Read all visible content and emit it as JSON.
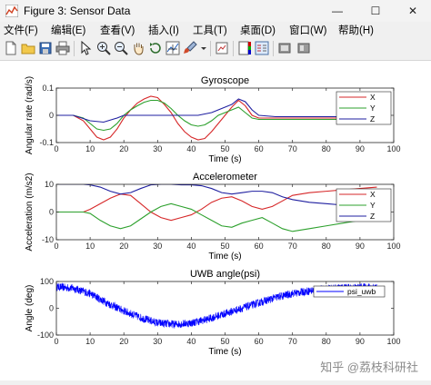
{
  "window": {
    "title": "Figure 3: Sensor Data",
    "controls": {
      "minimize": "—",
      "maximize": "☐",
      "close": "✕"
    }
  },
  "menu": [
    "文件(F)",
    "编辑(E)",
    "查看(V)",
    "插入(I)",
    "工具(T)",
    "桌面(D)",
    "窗口(W)",
    "帮助(H)"
  ],
  "toolbar_icons": [
    "new-file-icon",
    "open-folder-icon",
    "save-icon",
    "print-icon",
    "pointer-icon",
    "zoom-in-icon",
    "zoom-out-icon",
    "pan-hand-icon",
    "rotate-3d-icon",
    "data-cursor-icon",
    "brush-icon",
    "brush-dropdown-icon",
    "link-plot-icon",
    "colorbar-icon",
    "legend-icon",
    "hide-plot-tools-icon",
    "show-plot-tools-icon"
  ],
  "watermark": "知乎 @荔枝科研社",
  "chart_data": [
    {
      "type": "line",
      "title": "Gyroscope",
      "xlabel": "Time (s)",
      "ylabel": "Angular rate (rad/s)",
      "xlim": [
        0,
        100
      ],
      "ylim": [
        -0.1,
        0.1
      ],
      "xticks": [
        0,
        10,
        20,
        30,
        40,
        50,
        60,
        70,
        80,
        90,
        100
      ],
      "yticks": [
        -0.1,
        0,
        0.1
      ],
      "ytick_labels": [
        "-0.1",
        "0",
        "0.1"
      ],
      "legend_position": "top-right",
      "series": [
        {
          "name": "X",
          "color": "#d62728",
          "x": [
            0,
            5,
            8,
            10,
            12,
            14,
            16,
            18,
            20,
            22,
            24,
            26,
            28,
            30,
            32,
            34,
            36,
            38,
            40,
            42,
            44,
            46,
            48,
            50,
            52,
            54,
            56,
            58,
            60,
            65,
            70,
            80,
            95
          ],
          "y": [
            0,
            0,
            -0.02,
            -0.05,
            -0.08,
            -0.09,
            -0.08,
            -0.05,
            -0.01,
            0.02,
            0.045,
            0.06,
            0.07,
            0.065,
            0.04,
            0.01,
            -0.03,
            -0.06,
            -0.08,
            -0.09,
            -0.085,
            -0.06,
            -0.03,
            0.0,
            0.03,
            0.055,
            0.035,
            0.0,
            -0.01,
            -0.01,
            -0.01,
            -0.01,
            -0.01
          ]
        },
        {
          "name": "Y",
          "color": "#2ca02c",
          "x": [
            0,
            5,
            8,
            10,
            12,
            14,
            16,
            18,
            20,
            22,
            24,
            26,
            28,
            30,
            32,
            34,
            36,
            38,
            40,
            42,
            44,
            46,
            48,
            50,
            52,
            54,
            56,
            58,
            60,
            65,
            70,
            80,
            95
          ],
          "y": [
            0,
            0,
            -0.01,
            -0.03,
            -0.05,
            -0.055,
            -0.05,
            -0.03,
            0.0,
            0.02,
            0.035,
            0.048,
            0.055,
            0.055,
            0.045,
            0.025,
            0.0,
            -0.02,
            -0.035,
            -0.04,
            -0.035,
            -0.02,
            0.0,
            0.01,
            0.02,
            0.03,
            0.01,
            -0.01,
            -0.015,
            -0.015,
            -0.015,
            -0.015,
            -0.015
          ]
        },
        {
          "name": "Z",
          "color": "#1f1fa0",
          "x": [
            0,
            5,
            10,
            14,
            18,
            20,
            24,
            28,
            32,
            36,
            40,
            42,
            44,
            46,
            48,
            50,
            52,
            54,
            56,
            58,
            60,
            65,
            70,
            80,
            95
          ],
          "y": [
            0,
            0,
            -0.02,
            -0.025,
            -0.01,
            0.0,
            0.0,
            0.0,
            0.0,
            0.0,
            0.0,
            0.0,
            0.005,
            0.01,
            0.02,
            0.03,
            0.04,
            0.06,
            0.05,
            0.02,
            0.0,
            -0.005,
            -0.005,
            -0.005,
            -0.005
          ]
        }
      ]
    },
    {
      "type": "line",
      "title": "Accelerometer",
      "xlabel": "Time (s)",
      "ylabel": "Acceleration (m/s2)",
      "xlim": [
        0,
        100
      ],
      "ylim": [
        -10,
        10
      ],
      "xticks": [
        0,
        10,
        20,
        30,
        40,
        50,
        60,
        70,
        80,
        90,
        100
      ],
      "yticks": [
        -10,
        0,
        10
      ],
      "ytick_labels": [
        "-10",
        "0",
        "10"
      ],
      "legend_position": "top-right",
      "series": [
        {
          "name": "X",
          "color": "#d62728",
          "x": [
            0,
            5,
            8,
            10,
            13,
            16,
            19,
            22,
            25,
            28,
            31,
            34,
            37,
            40,
            43,
            46,
            49,
            52,
            55,
            58,
            61,
            64,
            67,
            70,
            75,
            80,
            85,
            90,
            95
          ],
          "y": [
            0,
            0,
            0,
            1,
            3,
            5,
            6.5,
            6,
            3,
            0,
            -2,
            -3,
            -2,
            -1,
            1,
            3.5,
            5,
            5.5,
            4,
            2,
            1,
            2,
            4,
            6,
            7,
            7.5,
            8,
            8.5,
            9
          ]
        },
        {
          "name": "Y",
          "color": "#2ca02c",
          "x": [
            0,
            5,
            8,
            10,
            13,
            16,
            19,
            22,
            25,
            28,
            31,
            34,
            37,
            40,
            43,
            46,
            49,
            52,
            55,
            58,
            61,
            64,
            67,
            70,
            75,
            80,
            85,
            90,
            95
          ],
          "y": [
            0,
            0,
            0,
            -0.5,
            -3,
            -5,
            -6,
            -5,
            -2.5,
            0,
            2,
            3,
            2,
            1,
            -1,
            -3,
            -5,
            -5.5,
            -4,
            -3,
            -2,
            -4,
            -6,
            -7,
            -6,
            -5,
            -4,
            -3,
            -2
          ]
        },
        {
          "name": "Z",
          "color": "#1f1fa0",
          "x": [
            0,
            5,
            8,
            10,
            13,
            16,
            19,
            22,
            25,
            28,
            31,
            34,
            37,
            40,
            43,
            46,
            49,
            52,
            55,
            58,
            61,
            64,
            67,
            70,
            75,
            80,
            85,
            90,
            95
          ],
          "y": [
            10,
            10,
            10,
            9.8,
            9,
            7.5,
            6.5,
            7,
            8.5,
            9.8,
            10,
            10,
            9.8,
            9.8,
            9.5,
            8.5,
            7,
            6.5,
            7,
            7.5,
            7.5,
            7,
            5.5,
            4.5,
            3.5,
            3,
            2.5,
            2.2,
            2
          ]
        }
      ]
    },
    {
      "type": "line",
      "title": "UWB angle(psi)",
      "xlabel": "Time (s)",
      "ylabel": "Angle (deg)",
      "xlim": [
        0,
        100
      ],
      "ylim": [
        -100,
        100
      ],
      "xticks": [
        0,
        10,
        20,
        30,
        40,
        50,
        60,
        70,
        80,
        90,
        100
      ],
      "yticks": [
        -100,
        0,
        100
      ],
      "ytick_labels": [
        "-100",
        "0",
        "100"
      ],
      "legend_position": "top-right",
      "series": [
        {
          "name": "psi_uwb",
          "color": "#0000ff",
          "noise_amplitude": 15,
          "x": [
            0,
            5,
            10,
            15,
            20,
            25,
            30,
            35,
            40,
            45,
            50,
            55,
            60,
            65,
            70,
            75,
            80,
            85,
            90,
            95
          ],
          "y": [
            80,
            75,
            55,
            20,
            -10,
            -35,
            -55,
            -60,
            -55,
            -40,
            -20,
            0,
            20,
            40,
            55,
            65,
            72,
            76,
            78,
            80
          ]
        }
      ]
    }
  ]
}
